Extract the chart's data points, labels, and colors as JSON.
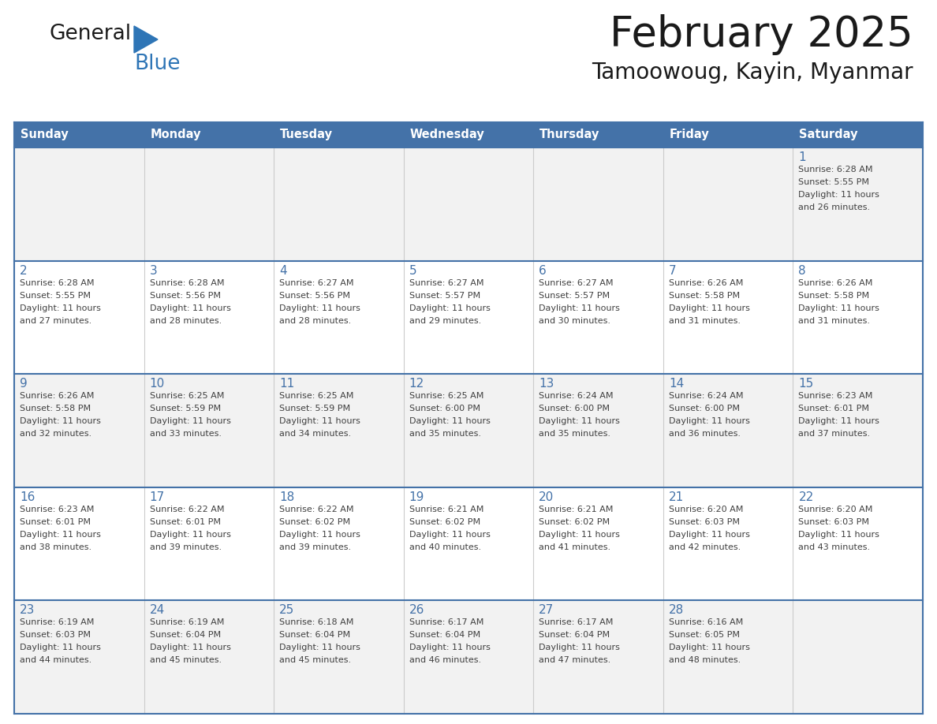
{
  "title": "February 2025",
  "subtitle": "Tamoowoug, Kayin, Myanmar",
  "days_of_week": [
    "Sunday",
    "Monday",
    "Tuesday",
    "Wednesday",
    "Thursday",
    "Friday",
    "Saturday"
  ],
  "header_bg": "#4472a8",
  "header_text": "#ffffff",
  "row_bg_light": "#f2f2f2",
  "row_bg_white": "#ffffff",
  "border_color": "#4472a8",
  "sep_color": "#4472a8",
  "day_num_color": "#4472a8",
  "cell_text_color": "#404040",
  "title_color": "#1a1a1a",
  "subtitle_color": "#1a1a1a",
  "logo_black": "#1a1a1a",
  "logo_blue": "#2e75b6",
  "logo_triangle_color": "#2e75b6",
  "calendar_data": [
    [
      null,
      null,
      null,
      null,
      null,
      null,
      {
        "day": "1",
        "sunrise": "6:28 AM",
        "sunset": "5:55 PM",
        "daylight_h": "11 hours",
        "daylight_m": "26 minutes."
      }
    ],
    [
      {
        "day": "2",
        "sunrise": "6:28 AM",
        "sunset": "5:55 PM",
        "daylight_h": "11 hours",
        "daylight_m": "27 minutes."
      },
      {
        "day": "3",
        "sunrise": "6:28 AM",
        "sunset": "5:56 PM",
        "daylight_h": "11 hours",
        "daylight_m": "28 minutes."
      },
      {
        "day": "4",
        "sunrise": "6:27 AM",
        "sunset": "5:56 PM",
        "daylight_h": "11 hours",
        "daylight_m": "28 minutes."
      },
      {
        "day": "5",
        "sunrise": "6:27 AM",
        "sunset": "5:57 PM",
        "daylight_h": "11 hours",
        "daylight_m": "29 minutes."
      },
      {
        "day": "6",
        "sunrise": "6:27 AM",
        "sunset": "5:57 PM",
        "daylight_h": "11 hours",
        "daylight_m": "30 minutes."
      },
      {
        "day": "7",
        "sunrise": "6:26 AM",
        "sunset": "5:58 PM",
        "daylight_h": "11 hours",
        "daylight_m": "31 minutes."
      },
      {
        "day": "8",
        "sunrise": "6:26 AM",
        "sunset": "5:58 PM",
        "daylight_h": "11 hours",
        "daylight_m": "31 minutes."
      }
    ],
    [
      {
        "day": "9",
        "sunrise": "6:26 AM",
        "sunset": "5:58 PM",
        "daylight_h": "11 hours",
        "daylight_m": "32 minutes."
      },
      {
        "day": "10",
        "sunrise": "6:25 AM",
        "sunset": "5:59 PM",
        "daylight_h": "11 hours",
        "daylight_m": "33 minutes."
      },
      {
        "day": "11",
        "sunrise": "6:25 AM",
        "sunset": "5:59 PM",
        "daylight_h": "11 hours",
        "daylight_m": "34 minutes."
      },
      {
        "day": "12",
        "sunrise": "6:25 AM",
        "sunset": "6:00 PM",
        "daylight_h": "11 hours",
        "daylight_m": "35 minutes."
      },
      {
        "day": "13",
        "sunrise": "6:24 AM",
        "sunset": "6:00 PM",
        "daylight_h": "11 hours",
        "daylight_m": "35 minutes."
      },
      {
        "day": "14",
        "sunrise": "6:24 AM",
        "sunset": "6:00 PM",
        "daylight_h": "11 hours",
        "daylight_m": "36 minutes."
      },
      {
        "day": "15",
        "sunrise": "6:23 AM",
        "sunset": "6:01 PM",
        "daylight_h": "11 hours",
        "daylight_m": "37 minutes."
      }
    ],
    [
      {
        "day": "16",
        "sunrise": "6:23 AM",
        "sunset": "6:01 PM",
        "daylight_h": "11 hours",
        "daylight_m": "38 minutes."
      },
      {
        "day": "17",
        "sunrise": "6:22 AM",
        "sunset": "6:01 PM",
        "daylight_h": "11 hours",
        "daylight_m": "39 minutes."
      },
      {
        "day": "18",
        "sunrise": "6:22 AM",
        "sunset": "6:02 PM",
        "daylight_h": "11 hours",
        "daylight_m": "39 minutes."
      },
      {
        "day": "19",
        "sunrise": "6:21 AM",
        "sunset": "6:02 PM",
        "daylight_h": "11 hours",
        "daylight_m": "40 minutes."
      },
      {
        "day": "20",
        "sunrise": "6:21 AM",
        "sunset": "6:02 PM",
        "daylight_h": "11 hours",
        "daylight_m": "41 minutes."
      },
      {
        "day": "21",
        "sunrise": "6:20 AM",
        "sunset": "6:03 PM",
        "daylight_h": "11 hours",
        "daylight_m": "42 minutes."
      },
      {
        "day": "22",
        "sunrise": "6:20 AM",
        "sunset": "6:03 PM",
        "daylight_h": "11 hours",
        "daylight_m": "43 minutes."
      }
    ],
    [
      {
        "day": "23",
        "sunrise": "6:19 AM",
        "sunset": "6:03 PM",
        "daylight_h": "11 hours",
        "daylight_m": "44 minutes."
      },
      {
        "day": "24",
        "sunrise": "6:19 AM",
        "sunset": "6:04 PM",
        "daylight_h": "11 hours",
        "daylight_m": "45 minutes."
      },
      {
        "day": "25",
        "sunrise": "6:18 AM",
        "sunset": "6:04 PM",
        "daylight_h": "11 hours",
        "daylight_m": "45 minutes."
      },
      {
        "day": "26",
        "sunrise": "6:17 AM",
        "sunset": "6:04 PM",
        "daylight_h": "11 hours",
        "daylight_m": "46 minutes."
      },
      {
        "day": "27",
        "sunrise": "6:17 AM",
        "sunset": "6:04 PM",
        "daylight_h": "11 hours",
        "daylight_m": "47 minutes."
      },
      {
        "day": "28",
        "sunrise": "6:16 AM",
        "sunset": "6:05 PM",
        "daylight_h": "11 hours",
        "daylight_m": "48 minutes."
      },
      null
    ]
  ]
}
